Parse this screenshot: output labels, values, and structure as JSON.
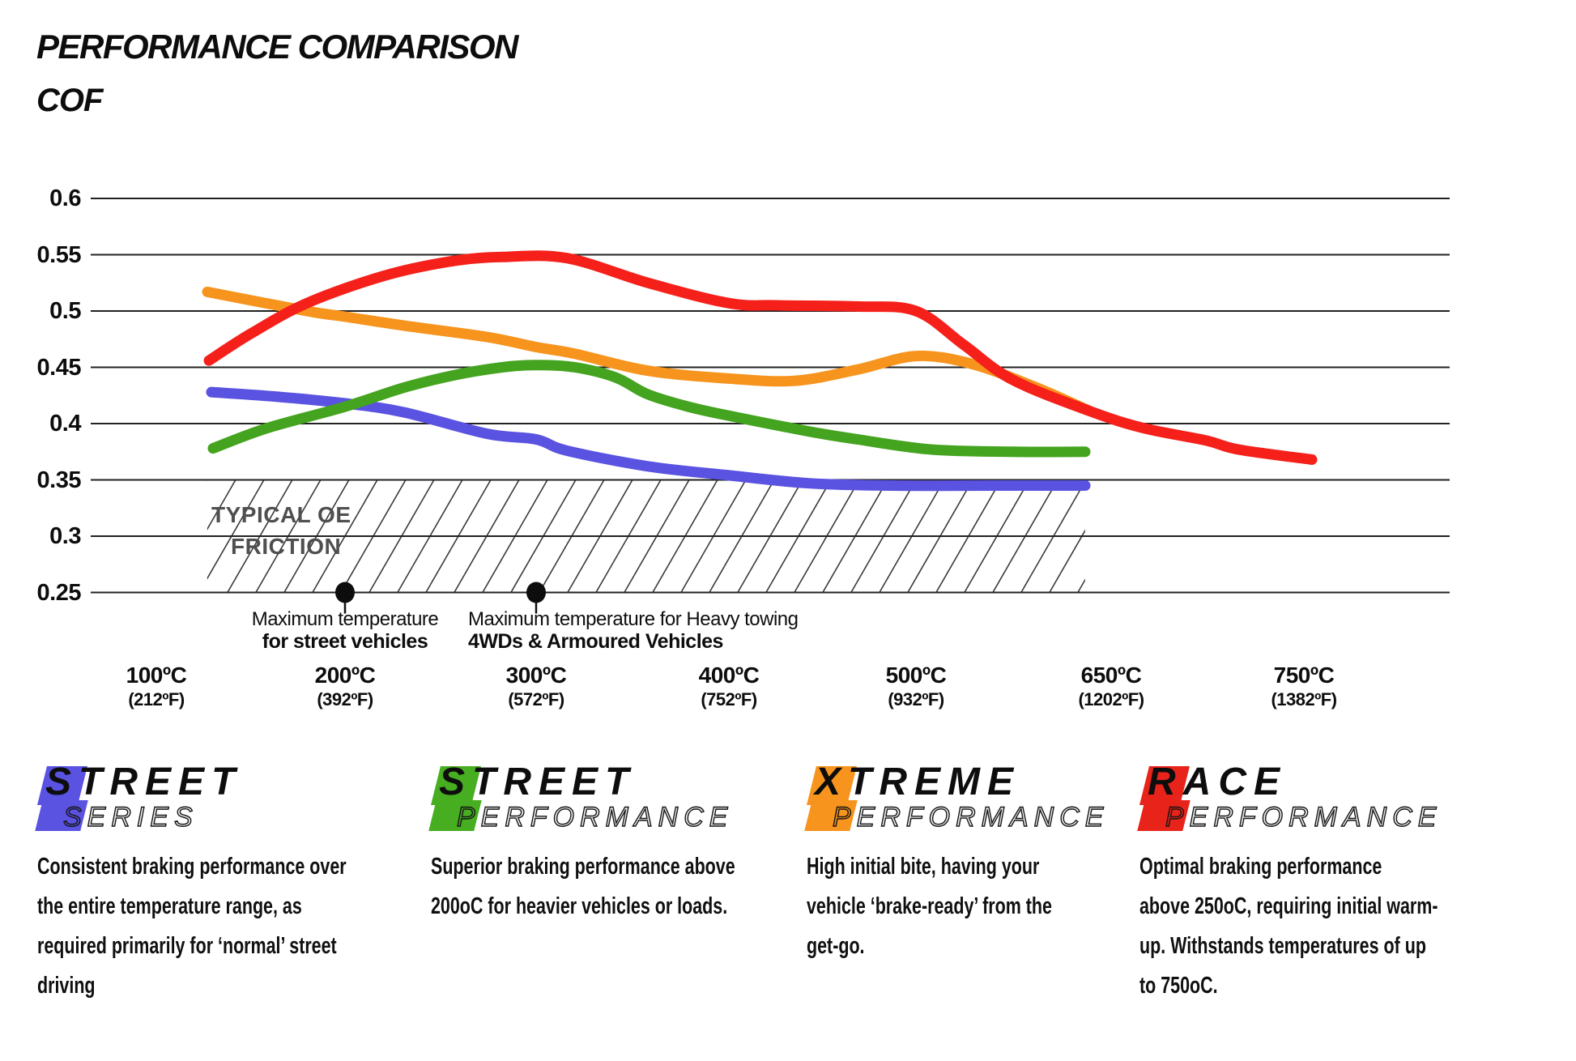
{
  "title": "PERFORMANCE COMPARISON",
  "y_axis_title": "COF",
  "chart_data": {
    "type": "line",
    "x_axis_unit": "ºC",
    "grid": true,
    "y_ticks": [
      {
        "label": "0.6",
        "value": 0.6
      },
      {
        "label": "0.55",
        "value": 0.55
      },
      {
        "label": "0.5",
        "value": 0.5
      },
      {
        "label": "0.45",
        "value": 0.45
      },
      {
        "label": "0.4",
        "value": 0.4
      },
      {
        "label": "0.35",
        "value": 0.35
      },
      {
        "label": "0.3",
        "value": 0.3
      },
      {
        "label": "0.25",
        "value": 0.25
      }
    ],
    "x_ticks": [
      {
        "label": "100ºC",
        "sub": "(212ºF)",
        "temp": 100
      },
      {
        "label": "200ºC",
        "sub": "(392ºF)",
        "temp": 200
      },
      {
        "label": "300ºC",
        "sub": "(572ºF)",
        "temp": 300
      },
      {
        "label": "400ºC",
        "sub": "(752ºF)",
        "temp": 400
      },
      {
        "label": "500ºC",
        "sub": "(932ºF)",
        "temp": 500
      },
      {
        "label": "650ºC",
        "sub": "(1202ºF)",
        "temp": 650
      },
      {
        "label": "750ºC",
        "sub": "(1382ºF)",
        "temp": 750
      }
    ],
    "oe_region": {
      "line1": "TYPICAL OE",
      "line2": "FRICTION",
      "cof_min": 0.25,
      "cof_max": 0.35,
      "temp_min": 127,
      "temp_max": 630
    },
    "markers": [
      {
        "temp": 200,
        "cof": 0.25
      },
      {
        "temp": 300,
        "cof": 0.25
      }
    ],
    "series": [
      {
        "name": "Street Series",
        "color": "#5a52e0",
        "points": [
          [
            129,
            0.428
          ],
          [
            163,
            0.424
          ],
          [
            200,
            0.418
          ],
          [
            231,
            0.41
          ],
          [
            274,
            0.391
          ],
          [
            300,
            0.386
          ],
          [
            316,
            0.376
          ],
          [
            358,
            0.362
          ],
          [
            400,
            0.354
          ],
          [
            443,
            0.347
          ],
          [
            487,
            0.345
          ],
          [
            560,
            0.345
          ],
          [
            630,
            0.345
          ]
        ]
      },
      {
        "name": "Street Performance",
        "color": "#45a41f",
        "points": [
          [
            130,
            0.378
          ],
          [
            159,
            0.396
          ],
          [
            200,
            0.415
          ],
          [
            231,
            0.432
          ],
          [
            257,
            0.443
          ],
          [
            282,
            0.45
          ],
          [
            300,
            0.452
          ],
          [
            320,
            0.45
          ],
          [
            341,
            0.441
          ],
          [
            358,
            0.426
          ],
          [
            379,
            0.415
          ],
          [
            400,
            0.407
          ],
          [
            443,
            0.393
          ],
          [
            469,
            0.386
          ],
          [
            512,
            0.377
          ],
          [
            574,
            0.375
          ],
          [
            630,
            0.375
          ]
        ]
      },
      {
        "name": "Xtreme Performance",
        "color": "#f7941e",
        "points": [
          [
            127,
            0.517
          ],
          [
            180,
            0.5
          ],
          [
            200,
            0.495
          ],
          [
            231,
            0.487
          ],
          [
            274,
            0.477
          ],
          [
            300,
            0.468
          ],
          [
            320,
            0.462
          ],
          [
            358,
            0.447
          ],
          [
            400,
            0.44
          ],
          [
            435,
            0.438
          ],
          [
            469,
            0.448
          ],
          [
            500,
            0.46
          ],
          [
            543,
            0.453
          ],
          [
            593,
            0.432
          ],
          [
            634,
            0.411
          ]
        ]
      },
      {
        "name": "Race Performance",
        "color": "#f5201a",
        "points": [
          [
            128,
            0.456
          ],
          [
            150,
            0.48
          ],
          [
            180,
            0.507
          ],
          [
            220,
            0.531
          ],
          [
            255,
            0.544
          ],
          [
            282,
            0.548
          ],
          [
            316,
            0.547
          ],
          [
            358,
            0.525
          ],
          [
            400,
            0.507
          ],
          [
            426,
            0.505
          ],
          [
            469,
            0.504
          ],
          [
            500,
            0.5
          ],
          [
            537,
            0.47
          ],
          [
            574,
            0.439
          ],
          [
            634,
            0.411
          ],
          [
            667,
            0.396
          ],
          [
            699,
            0.385
          ],
          [
            716,
            0.377
          ],
          [
            754,
            0.368
          ]
        ]
      }
    ]
  },
  "annotations": {
    "street_max": {
      "line1": "Maximum temperature",
      "line2": "for street vehicles"
    },
    "towing_max": {
      "line1": "Maximum temperature for Heavy towing",
      "line2": "4WDs & Armoured Vehicles"
    }
  },
  "legend": {
    "items": [
      {
        "line1": "STREET",
        "line2": "SERIES",
        "color": "#5a52e0",
        "description": "Consistent braking performance over\nthe entire temperature range, as\nrequired primarily for ‘normal’ street\ndriving"
      },
      {
        "line1": "STREET",
        "line2": "PERFORMANCE",
        "color": "#47ad21",
        "description": "Superior braking performance above\n200oC for heavier vehicles or loads."
      },
      {
        "line1": "XTREME",
        "line2": "PERFORMANCE",
        "color": "#f7941e",
        "description": "High initial bite, having your\nvehicle ‘brake-ready’ from the\nget-go."
      },
      {
        "line1": "RACE",
        "line2": "PERFORMANCE",
        "color": "#e8231a",
        "description": "Optimal braking performance\nabove 250oC, requiring initial warm-\nup. Withstands temperatures of up\nto 750oC."
      }
    ]
  }
}
